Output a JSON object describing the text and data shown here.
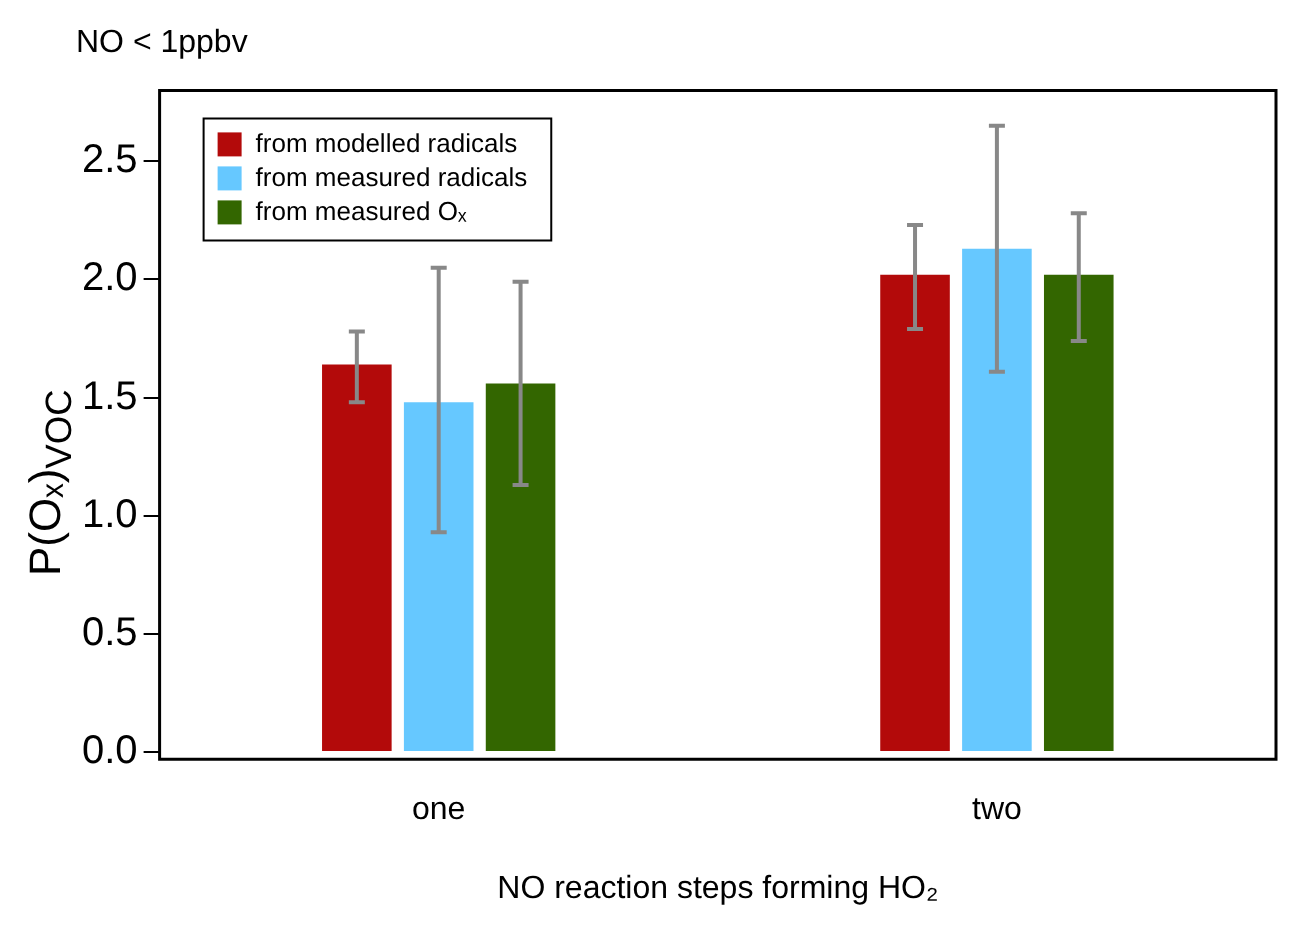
{
  "chart_data": {
    "type": "bar",
    "title": "NO < 1ppbv",
    "xlabel": "NO reaction steps forming HO₂",
    "ylabel": "P(Oₓ)$_{VOC}$",
    "categories": [
      "one",
      "two"
    ],
    "series": [
      {
        "name": "from modelled radicals",
        "color": "#b30a0a",
        "values": [
          1.64,
          2.02
        ],
        "errors": [
          [
            1.48,
            1.78
          ],
          [
            1.79,
            2.23
          ]
        ]
      },
      {
        "name": "from measured radicals",
        "color": "#66c8ff",
        "values": [
          1.48,
          2.13
        ],
        "errors": [
          [
            0.93,
            2.05
          ],
          [
            1.61,
            2.65
          ]
        ]
      },
      {
        "name": "from measured Oₓ",
        "color": "#336600",
        "values": [
          1.56,
          2.02
        ],
        "errors": [
          [
            1.13,
            1.99
          ],
          [
            1.74,
            2.28
          ]
        ]
      }
    ],
    "ylim": [
      -0.03,
      2.8
    ],
    "yticks": [
      {
        "value": 0,
        "label": "0.0"
      },
      {
        "value": 0.5,
        "label": "0.5"
      },
      {
        "value": 1,
        "label": "1.0"
      },
      {
        "value": 1.5,
        "label": "1.5"
      },
      {
        "value": 2,
        "label": "2.0"
      },
      {
        "value": 2.5,
        "label": "2.5"
      }
    ],
    "grid": false,
    "legend": "top left"
  }
}
